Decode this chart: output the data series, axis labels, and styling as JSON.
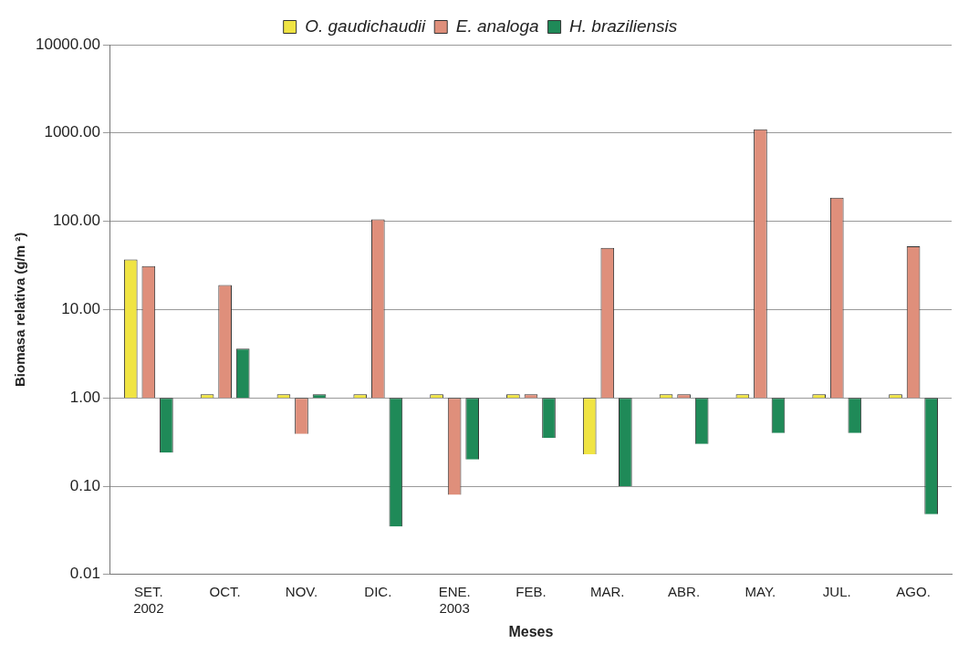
{
  "chart_data": {
    "type": "bar",
    "xlabel": "Meses",
    "ylabel": "Biomasa relativa (g/m ²)",
    "categories": [
      "SET. 2002",
      "OCT.",
      "NOV.",
      "DIC.",
      "ENE. 2003",
      "FEB.",
      "MAR.",
      "ABR.",
      "MAY.",
      "JUL.",
      "AGO."
    ],
    "series": [
      {
        "name": "O. gaudichaudii",
        "color": "#f0e443",
        "base": [
          1,
          1,
          1,
          1,
          1,
          1,
          1,
          1,
          1,
          1,
          1
        ],
        "values": [
          36,
          0,
          0,
          0,
          0,
          0,
          -0.77,
          0,
          0,
          0,
          0
        ]
      },
      {
        "name": "E. analoga",
        "color": "#df8f7b",
        "base": [
          1,
          1,
          1,
          1,
          1,
          1,
          1,
          1,
          1,
          1,
          1
        ],
        "values": [
          30,
          18,
          -0.61,
          104,
          -0.92,
          0,
          49,
          0,
          1099,
          184,
          51
        ]
      },
      {
        "name": "H. braziliensis",
        "color": "#1f8a58",
        "base": [
          1,
          1,
          1,
          1,
          1,
          1,
          1,
          1,
          1,
          1,
          1
        ],
        "values": [
          -0.76,
          2.6,
          0,
          -0.965,
          -0.8,
          -0.65,
          -0.9,
          -0.7,
          -0.6,
          -0.6,
          -0.952
        ]
      }
    ],
    "log": true,
    "ylim": [
      0.01,
      10000
    ],
    "yticks": [
      {
        "value": 0.01,
        "label": "0.01"
      },
      {
        "value": 0.1,
        "label": "0.10"
      },
      {
        "value": 1,
        "label": "1.00"
      },
      {
        "value": 10,
        "label": "10.00"
      },
      {
        "value": 100,
        "label": "100.00"
      },
      {
        "value": 1000,
        "label": "1000.00"
      },
      {
        "value": 10000,
        "label": "10000.00"
      }
    ],
    "grid": "y",
    "legend": "top"
  }
}
